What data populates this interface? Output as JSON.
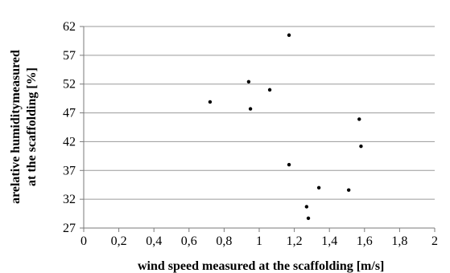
{
  "chart_data": {
    "type": "scatter",
    "title": "",
    "xlabel": "wind speed measured at the scaffolding  [m/s]",
    "ylabel_lines": [
      "arelative humiditymeasured",
      "at the scaffolding  [%]"
    ],
    "xlim": [
      0,
      2
    ],
    "ylim": [
      27,
      62
    ],
    "x_ticks": [
      0,
      0.2,
      0.4,
      0.6,
      0.8,
      1,
      1.2,
      1.4,
      1.6,
      1.8,
      2
    ],
    "x_tick_labels": [
      "0",
      "0,2",
      "0,4",
      "0,6",
      "0,8",
      "1",
      "1,2",
      "1,4",
      "1,6",
      "1,8",
      "2"
    ],
    "y_ticks": [
      27,
      32,
      37,
      42,
      47,
      52,
      57,
      62
    ],
    "y_tick_labels": [
      "27",
      "32",
      "37",
      "42",
      "47",
      "52",
      "57",
      "62"
    ],
    "grid": "horizontal",
    "marker_color": "#000000",
    "series": [
      {
        "points": [
          {
            "x": 0.72,
            "y": 48.9
          },
          {
            "x": 0.94,
            "y": 52.4
          },
          {
            "x": 0.95,
            "y": 47.7
          },
          {
            "x": 1.06,
            "y": 51.0
          },
          {
            "x": 1.17,
            "y": 60.5
          },
          {
            "x": 1.17,
            "y": 38.0
          },
          {
            "x": 1.27,
            "y": 30.7
          },
          {
            "x": 1.28,
            "y": 28.7
          },
          {
            "x": 1.34,
            "y": 34.0
          },
          {
            "x": 1.51,
            "y": 33.6
          },
          {
            "x": 1.57,
            "y": 45.9
          },
          {
            "x": 1.58,
            "y": 41.2
          }
        ]
      }
    ]
  }
}
